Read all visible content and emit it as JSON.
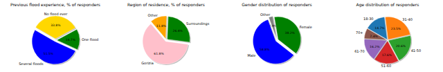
{
  "chart_data": [
    {
      "type": "pie",
      "title": "Previous flood experience, % of responders",
      "categories": [
        "No flood ever",
        "One flood",
        "Several floods"
      ],
      "values": [
        33.8,
        14.7,
        51.5
      ],
      "value_labels": [
        "33.8%",
        "14.7%",
        "51.5%"
      ],
      "colors": [
        "#ffd700",
        "#008000",
        "#0000ff"
      ],
      "data_labels": true
    },
    {
      "type": "pie",
      "title": "Region of residence, % of responders",
      "categories": [
        "Other",
        "Surroundings",
        "Gorizia"
      ],
      "values": [
        11.8,
        26.4,
        61.8
      ],
      "value_labels": [
        "11.8%",
        "26.4%",
        "61.8%"
      ],
      "colors": [
        "#ffa500",
        "#008000",
        "#ffc0cb"
      ],
      "data_labels": true
    },
    {
      "type": "pie",
      "title": "Gender distribution of responders",
      "categories": [
        "Other",
        "Female",
        "Male"
      ],
      "values": [
        2.9,
        38.2,
        58.8
      ],
      "value_labels": [
        "2.9%",
        "38.2%",
        "58.8%"
      ],
      "colors": [
        "#808080",
        "#008000",
        "#0000ff"
      ],
      "data_labels": true
    },
    {
      "type": "pie",
      "title": "Age distribution of responders",
      "categories": [
        "18-30",
        "31-40",
        "41-50",
        "51-60",
        "61-70",
        "70+"
      ],
      "values": [
        14.7,
        23.5,
        20.6,
        17.6,
        16.2,
        7.4
      ],
      "value_labels": [
        "14.7%",
        "23.5%",
        "20.6%",
        "17.6%",
        "16.2%",
        "7.4%"
      ],
      "colors": [
        "#1f77b4",
        "#ff7f0e",
        "#2ca02c",
        "#d62728",
        "#9467bd",
        "#8c564b"
      ],
      "data_labels": true
    }
  ]
}
